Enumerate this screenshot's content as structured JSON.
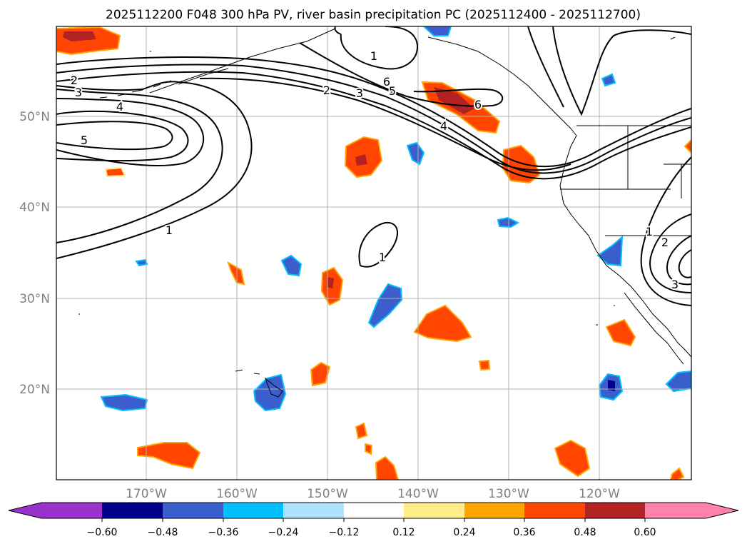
{
  "title": "2025112200 F048 300 hPa PV, river basin precipitation PC (2025112400 - 2025112700)",
  "map": {
    "lon_range": [
      -180,
      -110
    ],
    "lat_range": [
      10,
      60
    ],
    "lat_labels": [
      "50°N",
      "40°N",
      "30°N",
      "20°N"
    ],
    "lat_values": [
      50,
      40,
      30,
      20
    ],
    "lon_labels": [
      "170°W",
      "160°W",
      "150°W",
      "140°W",
      "130°W",
      "120°W"
    ],
    "lon_values": [
      -170,
      -160,
      -150,
      -140,
      -130,
      -120
    ],
    "contour_labels": [
      "1",
      "2",
      "3",
      "4",
      "5",
      "6",
      "1",
      "2",
      "3",
      "4",
      "5",
      "6",
      "1",
      "1",
      "2",
      "3"
    ]
  },
  "colorbar": {
    "ticks": [
      "−0.60",
      "−0.48",
      "−0.36",
      "−0.24",
      "−0.12",
      "0.12",
      "0.24",
      "0.36",
      "0.48",
      "0.60"
    ],
    "colors": [
      "#9932cc",
      "#00008b",
      "#3a5fcd",
      "#00bfff",
      "#b0e2ff",
      "#ffffff",
      "#ffec8b",
      "#ffa500",
      "#ff4500",
      "#b22222",
      "#ff82ab"
    ]
  }
}
